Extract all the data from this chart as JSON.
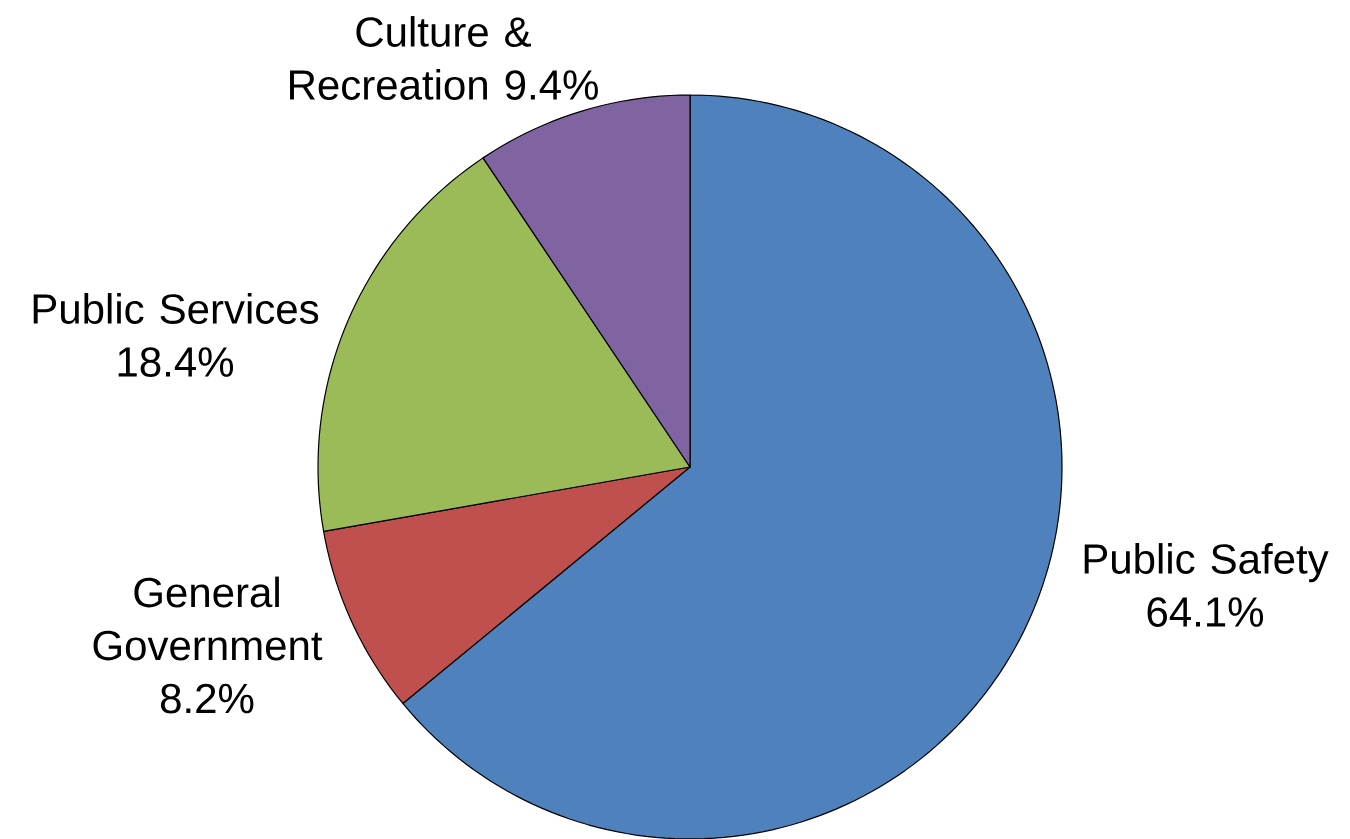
{
  "chart_data": {
    "type": "pie",
    "categories": [
      "Public Safety",
      "General Government",
      "Public Services",
      "Culture & Recreation"
    ],
    "values": [
      64.1,
      8.2,
      18.4,
      9.4
    ],
    "value_labels": [
      "64.1%",
      "8.2%",
      "18.4%",
      "9.4%"
    ],
    "colors": [
      "#4f81bd",
      "#c0504d",
      "#9bbb59",
      "#8064a2"
    ]
  }
}
